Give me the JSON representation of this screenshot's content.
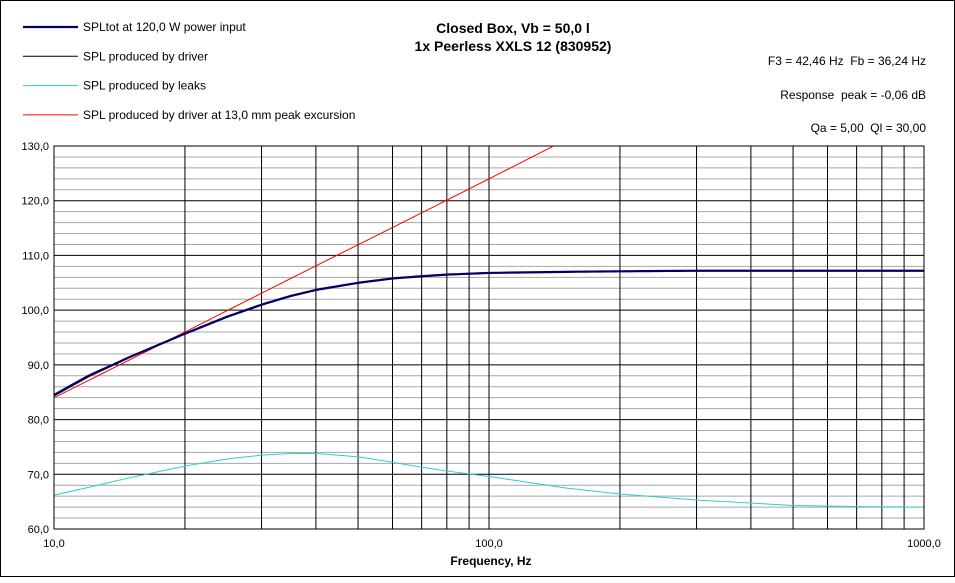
{
  "chart_data": {
    "type": "line",
    "title": "Closed Box, Vb = 50,0 l",
    "subtitle": "1x Peerless XXLS 12 (830952)",
    "xlabel": "Frequency, Hz",
    "ylabel": "",
    "x_scale": "log",
    "xlim": [
      10,
      1000
    ],
    "ylim": [
      60,
      130
    ],
    "x_tick_labels": [
      "10,0",
      "100,0",
      "1000,0"
    ],
    "y_tick_labels": [
      "60,0",
      "70,0",
      "80,0",
      "90,0",
      "100,0",
      "110,0",
      "120,0",
      "130,0"
    ],
    "grid": true,
    "legend_position": "top-left",
    "annotations": [
      "F3 = 42,46 Hz  Fb = 36,24 Hz",
      "Response  peak = -0,06 dB",
      "Qa = 5,00  Ql = 30,00"
    ],
    "series": [
      {
        "name": "SPLtot at 120,0 W power input",
        "color": "#000066",
        "x": [
          10,
          12,
          15,
          20,
          25,
          30,
          35,
          40,
          50,
          60,
          70,
          80,
          100,
          150,
          200,
          300,
          500,
          700,
          1000
        ],
        "y": [
          84.5,
          88.0,
          91.5,
          95.7,
          98.8,
          101.0,
          102.6,
          103.7,
          105.0,
          105.8,
          106.2,
          106.5,
          106.8,
          107.0,
          107.1,
          107.2,
          107.2,
          107.2,
          107.2
        ]
      },
      {
        "name": "SPL produced by driver",
        "color": "#000000",
        "x": [
          10,
          12,
          15,
          20,
          25,
          30,
          35,
          40,
          50,
          60,
          70,
          80,
          100,
          150,
          200,
          300,
          500,
          700,
          1000
        ],
        "y": [
          84.3,
          87.8,
          91.4,
          95.6,
          98.7,
          100.9,
          102.5,
          103.6,
          104.9,
          105.7,
          106.1,
          106.4,
          106.8,
          107.0,
          107.1,
          107.2,
          107.2,
          107.2,
          107.2
        ]
      },
      {
        "name": "SPL produced by leaks",
        "color": "#33CCCC",
        "x": [
          10,
          12,
          15,
          20,
          25,
          30,
          35,
          40,
          50,
          60,
          70,
          80,
          100,
          150,
          200,
          300,
          500,
          700,
          1000
        ],
        "y": [
          66.2,
          67.6,
          69.4,
          71.5,
          72.8,
          73.5,
          73.8,
          73.8,
          73.2,
          72.2,
          71.3,
          70.6,
          69.6,
          67.5,
          66.4,
          65.3,
          64.3,
          64.1,
          64.0
        ]
      },
      {
        "name": "SPL produced by driver at 13,0 mm peak excursion",
        "color": "#FF0000",
        "x": [
          10,
          15,
          20,
          30,
          40,
          60,
          80,
          100,
          120,
          140
        ],
        "y": [
          84.0,
          91.0,
          96.0,
          103.1,
          108.1,
          115.1,
          120.1,
          124.0,
          127.2,
          129.9
        ]
      }
    ]
  }
}
